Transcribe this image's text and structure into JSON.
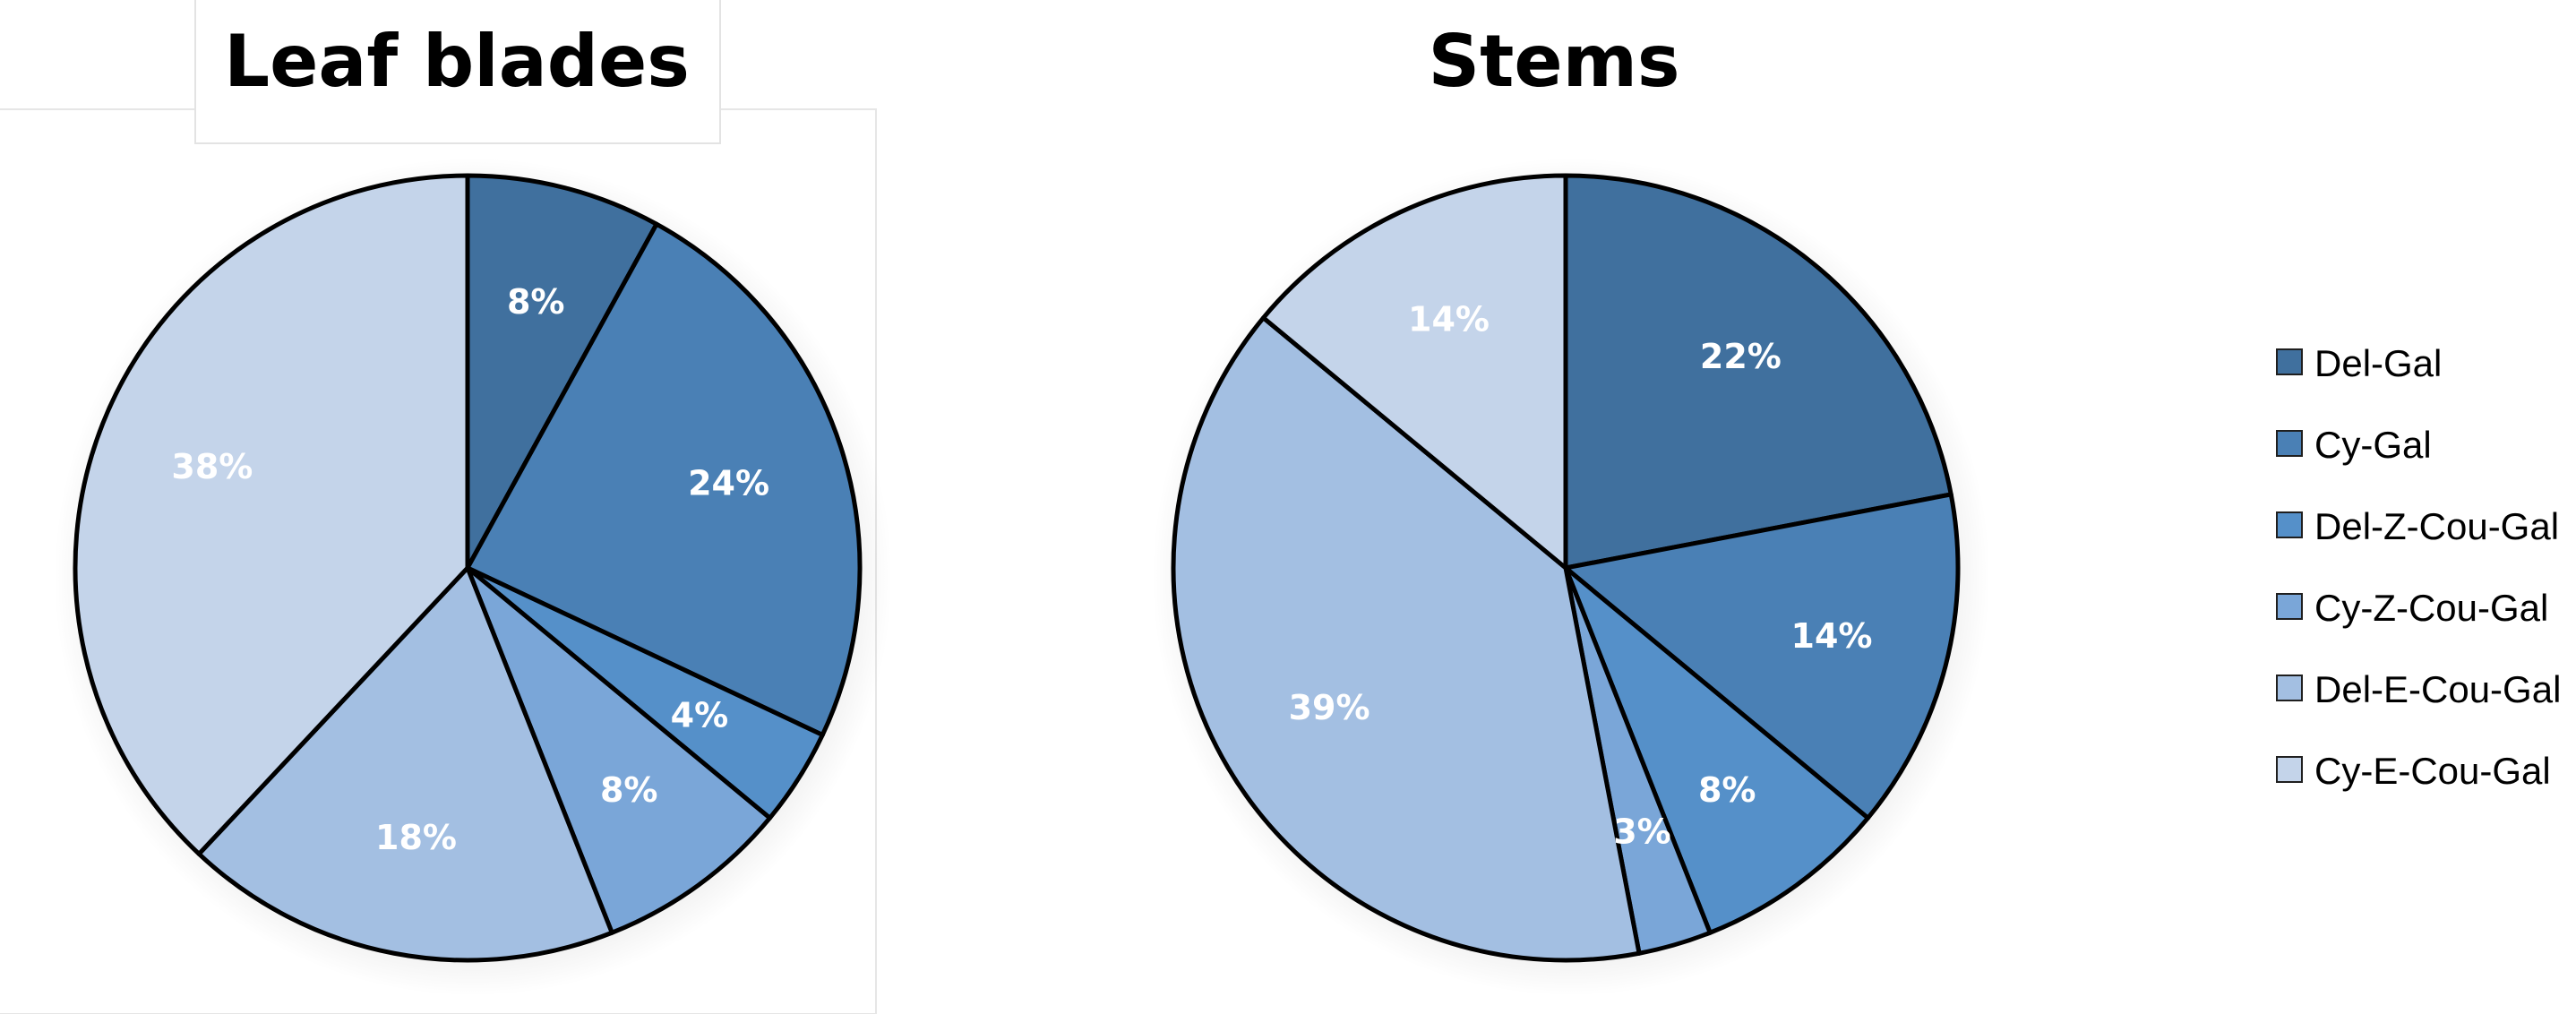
{
  "colors": {
    "series": [
      "#40709e",
      "#4a80b5",
      "#5590c9",
      "#7aa6d8",
      "#a3bfe2",
      "#c4d4ea"
    ],
    "label": "#ffffff",
    "outline": "#000000"
  },
  "chart_data": [
    {
      "type": "pie",
      "title": "Leaf blades",
      "categories": [
        "Del-Gal",
        "Cy-Gal",
        "Del-Z-Cou-Gal",
        "Cy-Z-Cou-Gal",
        "Del-E-Cou-Gal",
        "Cy-E-Cou-Gal"
      ],
      "values": [
        8,
        24,
        4,
        8,
        18,
        38
      ],
      "labels": [
        "8%",
        "24%",
        "4%",
        "8%",
        "18%",
        "38%"
      ],
      "unit": "%"
    },
    {
      "type": "pie",
      "title": "Stems",
      "categories": [
        "Del-Gal",
        "Cy-Gal",
        "Del-Z-Cou-Gal",
        "Cy-Z-Cou-Gal",
        "Del-E-Cou-Gal",
        "Cy-E-Cou-Gal"
      ],
      "values": [
        22,
        14,
        8,
        3,
        39,
        14
      ],
      "labels": [
        "22%",
        "14%",
        "8%",
        "3%",
        "39%",
        "14%"
      ],
      "unit": "%"
    }
  ],
  "legend": {
    "position": "right",
    "items": [
      "Del-Gal",
      "Cy-Gal",
      "Del-Z-Cou-Gal",
      "Cy-Z-Cou-Gal",
      "Del-E-Cou-Gal",
      "Cy-E-Cou-Gal"
    ]
  }
}
